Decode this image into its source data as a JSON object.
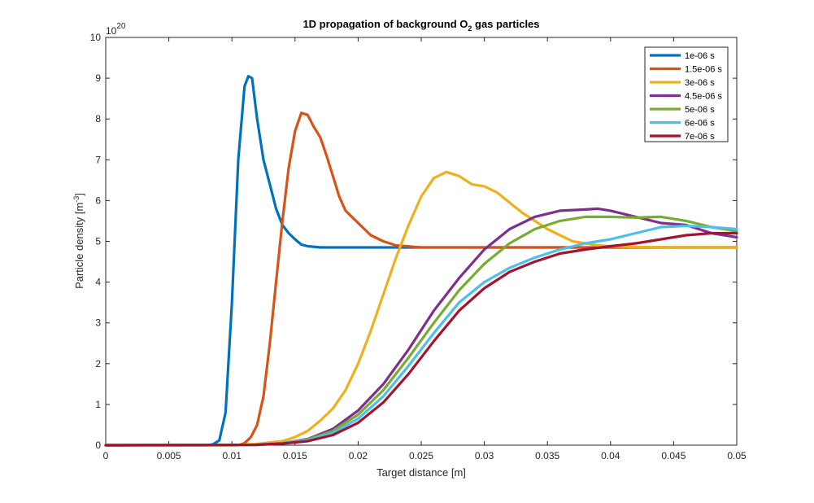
{
  "chart_data": {
    "type": "line",
    "title_main": "1D propagation of background O",
    "title_sub": "2",
    "title_tail": " gas particles",
    "xlabel": "Target distance [m]",
    "ylabel_main": "Particle density [m",
    "ylabel_sup": "-3",
    "ylabel_tail": "]",
    "y_multiplier_base": "10",
    "y_multiplier_exp": "20",
    "xlim": [
      0,
      0.05
    ],
    "ylim": [
      0,
      10
    ],
    "x_ticks": [
      0,
      0.005,
      0.01,
      0.015,
      0.02,
      0.025,
      0.03,
      0.035,
      0.04,
      0.045,
      0.05
    ],
    "x_tick_labels": [
      "0",
      "0.005",
      "0.01",
      "0.015",
      "0.02",
      "0.025",
      "0.03",
      "0.035",
      "0.04",
      "0.045",
      "0.05"
    ],
    "y_ticks": [
      0,
      1,
      2,
      3,
      4,
      5,
      6,
      7,
      8,
      9,
      10
    ],
    "y_tick_labels": [
      "0",
      "1",
      "2",
      "3",
      "4",
      "5",
      "6",
      "7",
      "8",
      "9",
      "10"
    ],
    "grid": false,
    "legend_position": "top-right",
    "series": [
      {
        "name": "1e-06 s",
        "color": "#0072BD",
        "x": [
          0,
          0.008,
          0.0085,
          0.009,
          0.0095,
          0.01,
          0.0105,
          0.011,
          0.0113,
          0.0116,
          0.012,
          0.0125,
          0.013,
          0.0135,
          0.014,
          0.0145,
          0.015,
          0.0155,
          0.016,
          0.017,
          0.018,
          0.05
        ],
        "y": [
          0,
          0,
          0.02,
          0.12,
          0.8,
          3.5,
          7.0,
          8.8,
          9.05,
          9.0,
          8.0,
          7.0,
          6.4,
          5.8,
          5.4,
          5.2,
          5.05,
          4.92,
          4.88,
          4.85,
          4.85,
          4.85
        ]
      },
      {
        "name": "1.5e-06 s",
        "color": "#D95319",
        "x": [
          0,
          0.0105,
          0.011,
          0.0115,
          0.012,
          0.0125,
          0.013,
          0.0135,
          0.014,
          0.0145,
          0.015,
          0.0155,
          0.016,
          0.0165,
          0.017,
          0.0175,
          0.018,
          0.0185,
          0.019,
          0.02,
          0.021,
          0.022,
          0.023,
          0.025,
          0.05
        ],
        "y": [
          0,
          0,
          0.05,
          0.2,
          0.5,
          1.2,
          2.5,
          4.0,
          5.5,
          6.8,
          7.7,
          8.15,
          8.1,
          7.8,
          7.55,
          7.1,
          6.6,
          6.1,
          5.75,
          5.45,
          5.15,
          5.0,
          4.9,
          4.85,
          4.85
        ]
      },
      {
        "name": "3e-06 s",
        "color": "#EDB120",
        "x": [
          0,
          0.01,
          0.012,
          0.014,
          0.015,
          0.016,
          0.017,
          0.018,
          0.019,
          0.02,
          0.021,
          0.022,
          0.023,
          0.024,
          0.025,
          0.026,
          0.027,
          0.028,
          0.029,
          0.03,
          0.031,
          0.032,
          0.033,
          0.034,
          0.035,
          0.036,
          0.037,
          0.038,
          0.039,
          0.04,
          0.042,
          0.045,
          0.05
        ],
        "y": [
          0,
          0,
          0.03,
          0.1,
          0.2,
          0.35,
          0.6,
          0.9,
          1.35,
          2.0,
          2.8,
          3.7,
          4.6,
          5.4,
          6.1,
          6.55,
          6.7,
          6.6,
          6.4,
          6.35,
          6.2,
          5.95,
          5.7,
          5.5,
          5.3,
          5.15,
          5.0,
          4.95,
          4.9,
          4.88,
          4.86,
          4.85,
          4.85
        ]
      },
      {
        "name": "4.5e-06 s",
        "color": "#7E2F8E",
        "x": [
          0,
          0.012,
          0.014,
          0.016,
          0.018,
          0.02,
          0.022,
          0.024,
          0.026,
          0.028,
          0.03,
          0.032,
          0.034,
          0.036,
          0.038,
          0.039,
          0.04,
          0.042,
          0.044,
          0.046,
          0.048,
          0.05
        ],
        "y": [
          0,
          0.01,
          0.05,
          0.15,
          0.4,
          0.85,
          1.5,
          2.35,
          3.3,
          4.1,
          4.8,
          5.3,
          5.6,
          5.75,
          5.78,
          5.8,
          5.75,
          5.6,
          5.45,
          5.4,
          5.2,
          5.1
        ]
      },
      {
        "name": "5e-06 s",
        "color": "#77AC30",
        "x": [
          0,
          0.012,
          0.014,
          0.016,
          0.018,
          0.02,
          0.022,
          0.024,
          0.026,
          0.028,
          0.03,
          0.032,
          0.034,
          0.036,
          0.038,
          0.04,
          0.042,
          0.044,
          0.046,
          0.048,
          0.05
        ],
        "y": [
          0,
          0.01,
          0.05,
          0.14,
          0.35,
          0.75,
          1.35,
          2.15,
          3.0,
          3.8,
          4.45,
          4.95,
          5.3,
          5.5,
          5.6,
          5.6,
          5.58,
          5.6,
          5.5,
          5.35,
          5.25
        ]
      },
      {
        "name": "6e-06 s",
        "color": "#4DBEEE",
        "x": [
          0,
          0.012,
          0.014,
          0.016,
          0.018,
          0.02,
          0.022,
          0.024,
          0.026,
          0.028,
          0.03,
          0.032,
          0.034,
          0.036,
          0.038,
          0.04,
          0.042,
          0.044,
          0.046,
          0.048,
          0.05
        ],
        "y": [
          0,
          0.01,
          0.05,
          0.12,
          0.3,
          0.65,
          1.2,
          1.95,
          2.75,
          3.5,
          4.0,
          4.35,
          4.6,
          4.8,
          4.95,
          5.05,
          5.2,
          5.35,
          5.38,
          5.35,
          5.3
        ]
      },
      {
        "name": "7e-06 s",
        "color": "#A2142F",
        "x": [
          0,
          0.012,
          0.014,
          0.016,
          0.018,
          0.02,
          0.022,
          0.024,
          0.026,
          0.028,
          0.03,
          0.032,
          0.034,
          0.036,
          0.038,
          0.04,
          0.042,
          0.044,
          0.046,
          0.048,
          0.05
        ],
        "y": [
          0,
          0.01,
          0.04,
          0.1,
          0.25,
          0.55,
          1.05,
          1.75,
          2.55,
          3.3,
          3.85,
          4.25,
          4.5,
          4.7,
          4.8,
          4.88,
          4.95,
          5.05,
          5.15,
          5.2,
          5.2
        ]
      }
    ]
  }
}
